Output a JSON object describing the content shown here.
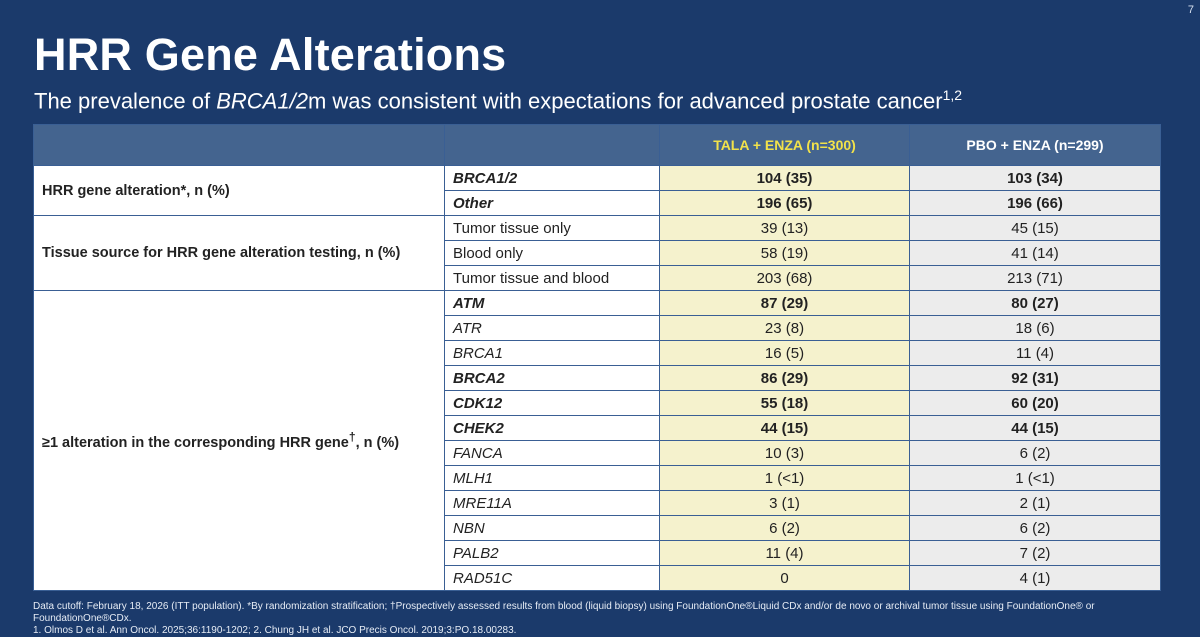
{
  "slide_number": "7",
  "title": "HRR Gene Alterations",
  "subtitle": {
    "pre": "The prevalence of ",
    "gene": "BRCA1/2",
    "post": "m was consistent with expectations for advanced prostate cancer",
    "sup": "1,2"
  },
  "table": {
    "headers": [
      "",
      "",
      "TALA + ENZA (n=300)",
      "PBO + ENZA (n=299)"
    ],
    "groups": [
      {
        "label": "HRR gene alteration*, n (%)",
        "rows": [
          {
            "sub": "BRCA1/2",
            "tala": "104 (35)",
            "pbo": "103 (34)"
          },
          {
            "sub": "Other",
            "tala": "196 (65)",
            "pbo": "196 (66)"
          }
        ]
      },
      {
        "label": "Tissue source for HRR gene alteration testing, n (%)",
        "rows": [
          {
            "sub": "Tumor tissue only",
            "tala": "39 (13)",
            "pbo": "45 (15)"
          },
          {
            "sub": "Blood only",
            "tala": "58 (19)",
            "pbo": "41 (14)"
          },
          {
            "sub": "Tumor tissue and blood",
            "tala": "203 (68)",
            "pbo": "213 (71)"
          }
        ]
      },
      {
        "label": "≥1 alteration in the corresponding HRR gene",
        "label_sup": "†",
        "label_tail": ", n (%)",
        "rows": [
          {
            "sub": "ATM",
            "tala": "87 (29)",
            "pbo": "80 (27)"
          },
          {
            "sub": "ATR",
            "tala": "23 (8)",
            "pbo": "18 (6)"
          },
          {
            "sub": "BRCA1",
            "tala": "16 (5)",
            "pbo": "11 (4)"
          },
          {
            "sub": "BRCA2",
            "tala": "86 (29)",
            "pbo": "92 (31)"
          },
          {
            "sub": "CDK12",
            "tala": "55 (18)",
            "pbo": "60 (20)"
          },
          {
            "sub": "CHEK2",
            "tala": "44 (15)",
            "pbo": "44 (15)"
          },
          {
            "sub": "FANCA",
            "tala": "10 (3)",
            "pbo": "6 (2)"
          },
          {
            "sub": "MLH1",
            "tala": "1 (<1)",
            "pbo": "1 (<1)"
          },
          {
            "sub": "MRE11A",
            "tala": "3 (1)",
            "pbo": "2 (1)"
          },
          {
            "sub": "NBN",
            "tala": "6 (2)",
            "pbo": "6 (2)"
          },
          {
            "sub": "PALB2",
            "tala": "11 (4)",
            "pbo": "7 (2)"
          },
          {
            "sub": "RAD51C",
            "tala": "0",
            "pbo": "4 (1)"
          }
        ]
      }
    ]
  },
  "footnote": {
    "line1": "Data cutoff: February 18, 2026 (ITT population). *By randomization stratification; †Prospectively assessed results from blood (liquid biopsy) using FoundationOne®Liquid CDx and/or de novo or archival tumor tissue using FoundationOne® or FoundationOne®CDx.",
    "line2": "1. Olmos D et al. Ann Oncol. 2025;36:1190-1202; 2. Chung JH et al. JCO Precis Oncol. 2019;3:PO.18.00283."
  },
  "colors": {
    "background": "#1b3a6b",
    "header_fill": "#44648f",
    "tala_header_text": "#f2e24a",
    "tala_column_fill": "#f5f2cd",
    "pbo_column_fill": "#ececec"
  }
}
